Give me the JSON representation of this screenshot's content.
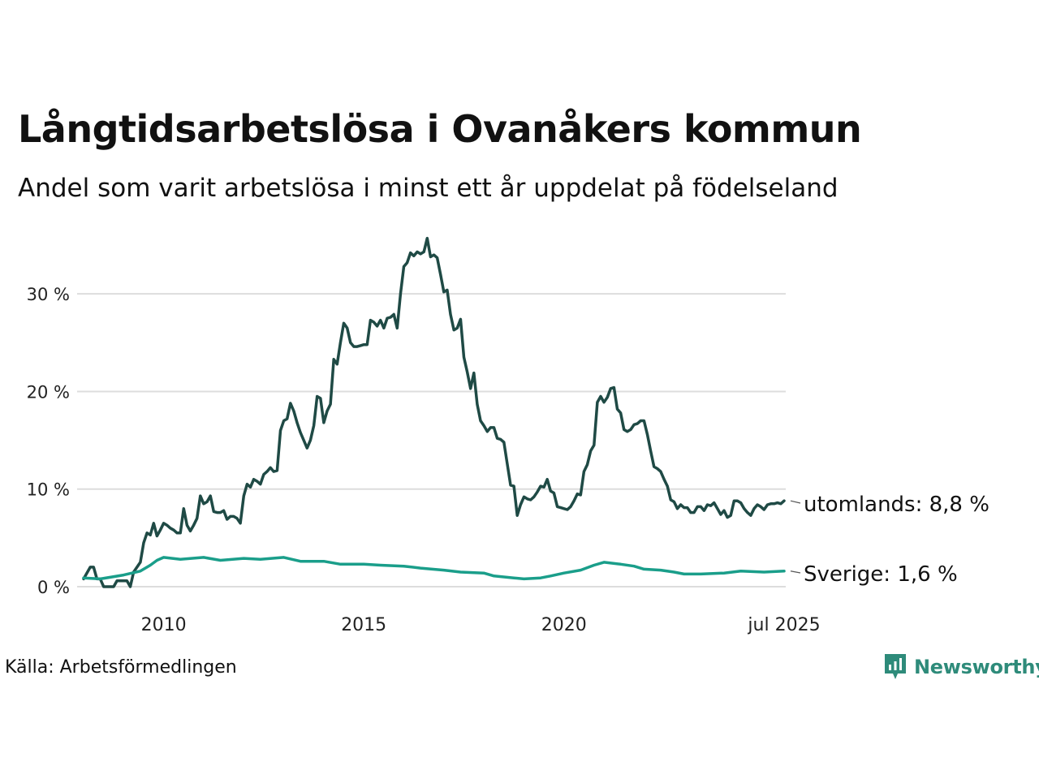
{
  "header": {
    "title": "Långtidsarbetslösa i Ovanåkers kommun",
    "subtitle": "Andel som varit arbetslösa i minst ett år uppdelat på födelseland"
  },
  "footer": {
    "source": "Källa: Arbetsförmedlingen",
    "brand": "Newsworthy"
  },
  "colors": {
    "utomlands": "#1f4a45",
    "sverige": "#1a9e8a",
    "grid": "#dddddd",
    "brand": "#2e8b7a"
  },
  "chart_data": {
    "type": "line",
    "x_start": "2008-01",
    "x_end": "2025-07",
    "x_ticks": [
      {
        "x": "2010-01",
        "label": "2010"
      },
      {
        "x": "2015-01",
        "label": "2015"
      },
      {
        "x": "2020-01",
        "label": "2020"
      },
      {
        "x": "2025-07",
        "label": "jul 2025"
      }
    ],
    "ylim": [
      0,
      36
    ],
    "y_ticks": [
      {
        "value": 0,
        "label": "0 %"
      },
      {
        "value": 10,
        "label": "10 %"
      },
      {
        "value": 20,
        "label": "20 %"
      },
      {
        "value": 30,
        "label": "30 %"
      }
    ],
    "grid": true,
    "series": [
      {
        "name": "utomlands",
        "end_label": "utomlands: 8,8 %",
        "color": "#1f4a45",
        "points": [
          [
            "2008-01",
            0.8
          ],
          [
            "2008-03",
            2.0
          ],
          [
            "2008-04",
            2.0
          ],
          [
            "2008-05",
            0.8
          ],
          [
            "2008-06",
            0.8
          ],
          [
            "2008-07",
            0
          ],
          [
            "2008-10",
            0
          ],
          [
            "2008-11",
            0.6
          ],
          [
            "2009-02",
            0.6
          ],
          [
            "2009-03",
            0
          ],
          [
            "2009-04",
            1.5
          ],
          [
            "2009-06",
            2.5
          ],
          [
            "2009-07",
            4.5
          ],
          [
            "2009-08",
            5.5
          ],
          [
            "2009-09",
            5.3
          ],
          [
            "2009-10",
            6.5
          ],
          [
            "2009-11",
            5.2
          ],
          [
            "2009-12",
            5.8
          ],
          [
            "2010-01",
            6.5
          ],
          [
            "2010-02",
            6.3
          ],
          [
            "2010-03",
            6.0
          ],
          [
            "2010-04",
            5.8
          ],
          [
            "2010-05",
            5.5
          ],
          [
            "2010-06",
            5.5
          ],
          [
            "2010-07",
            8.0
          ],
          [
            "2010-08",
            6.3
          ],
          [
            "2010-09",
            5.7
          ],
          [
            "2010-10",
            6.3
          ],
          [
            "2010-11",
            7.0
          ],
          [
            "2010-12",
            9.3
          ],
          [
            "2011-01",
            8.5
          ],
          [
            "2011-02",
            8.7
          ],
          [
            "2011-03",
            9.3
          ],
          [
            "2011-04",
            7.7
          ],
          [
            "2011-05",
            7.6
          ],
          [
            "2011-06",
            7.6
          ],
          [
            "2011-07",
            7.8
          ],
          [
            "2011-08",
            6.9
          ],
          [
            "2011-09",
            7.2
          ],
          [
            "2011-10",
            7.2
          ],
          [
            "2011-11",
            7.0
          ],
          [
            "2011-12",
            6.5
          ],
          [
            "2012-01",
            9.3
          ],
          [
            "2012-02",
            10.5
          ],
          [
            "2012-03",
            10.2
          ],
          [
            "2012-04",
            11.0
          ],
          [
            "2012-05",
            10.8
          ],
          [
            "2012-06",
            10.5
          ],
          [
            "2012-07",
            11.5
          ],
          [
            "2012-08",
            11.8
          ],
          [
            "2012-09",
            12.2
          ],
          [
            "2012-10",
            11.8
          ],
          [
            "2012-11",
            11.9
          ],
          [
            "2012-12",
            16.0
          ],
          [
            "2013-01",
            17.0
          ],
          [
            "2013-02",
            17.2
          ],
          [
            "2013-03",
            18.8
          ],
          [
            "2013-04",
            18.0
          ],
          [
            "2013-05",
            16.8
          ],
          [
            "2013-06",
            15.8
          ],
          [
            "2013-07",
            15.0
          ],
          [
            "2013-08",
            14.2
          ],
          [
            "2013-09",
            15.0
          ],
          [
            "2013-10",
            16.5
          ],
          [
            "2013-11",
            19.5
          ],
          [
            "2013-12",
            19.3
          ],
          [
            "2014-01",
            16.8
          ],
          [
            "2014-02",
            18.0
          ],
          [
            "2014-03",
            18.7
          ],
          [
            "2014-04",
            23.3
          ],
          [
            "2014-05",
            22.8
          ],
          [
            "2014-06",
            25.0
          ],
          [
            "2014-07",
            27.0
          ],
          [
            "2014-08",
            26.5
          ],
          [
            "2014-09",
            25.0
          ],
          [
            "2014-10",
            24.6
          ],
          [
            "2014-11",
            24.6
          ],
          [
            "2014-12",
            24.7
          ],
          [
            "2015-01",
            24.8
          ],
          [
            "2015-02",
            24.8
          ],
          [
            "2015-03",
            27.3
          ],
          [
            "2015-04",
            27.1
          ],
          [
            "2015-05",
            26.7
          ],
          [
            "2015-06",
            27.3
          ],
          [
            "2015-07",
            26.5
          ],
          [
            "2015-08",
            27.5
          ],
          [
            "2015-09",
            27.6
          ],
          [
            "2015-10",
            27.9
          ],
          [
            "2015-11",
            26.5
          ],
          [
            "2015-12",
            30.0
          ],
          [
            "2016-01",
            32.8
          ],
          [
            "2016-02",
            33.2
          ],
          [
            "2016-03",
            34.2
          ],
          [
            "2016-04",
            33.9
          ],
          [
            "2016-05",
            34.3
          ],
          [
            "2016-06",
            34.1
          ],
          [
            "2016-07",
            34.3
          ],
          [
            "2016-08",
            35.7
          ],
          [
            "2016-09",
            33.8
          ],
          [
            "2016-10",
            34.0
          ],
          [
            "2016-11",
            33.7
          ],
          [
            "2016-12",
            32.0
          ],
          [
            "2017-01",
            30.2
          ],
          [
            "2017-02",
            30.4
          ],
          [
            "2017-03",
            27.9
          ],
          [
            "2017-04",
            26.3
          ],
          [
            "2017-05",
            26.5
          ],
          [
            "2017-06",
            27.4
          ],
          [
            "2017-07",
            23.5
          ],
          [
            "2017-08",
            22.0
          ],
          [
            "2017-09",
            20.3
          ],
          [
            "2017-10",
            21.9
          ],
          [
            "2017-11",
            18.7
          ],
          [
            "2017-12",
            17.0
          ],
          [
            "2018-01",
            16.5
          ],
          [
            "2018-02",
            15.9
          ],
          [
            "2018-03",
            16.3
          ],
          [
            "2018-04",
            16.3
          ],
          [
            "2018-05",
            15.2
          ],
          [
            "2018-06",
            15.1
          ],
          [
            "2018-07",
            14.8
          ],
          [
            "2018-08",
            12.6
          ],
          [
            "2018-09",
            10.4
          ],
          [
            "2018-10",
            10.3
          ],
          [
            "2018-11",
            7.3
          ],
          [
            "2018-12",
            8.4
          ],
          [
            "2019-01",
            9.2
          ],
          [
            "2019-02",
            9.0
          ],
          [
            "2019-03",
            8.9
          ],
          [
            "2019-04",
            9.2
          ],
          [
            "2019-05",
            9.7
          ],
          [
            "2019-06",
            10.3
          ],
          [
            "2019-07",
            10.2
          ],
          [
            "2019-08",
            11.0
          ],
          [
            "2019-09",
            9.8
          ],
          [
            "2019-10",
            9.6
          ],
          [
            "2019-11",
            8.2
          ],
          [
            "2019-12",
            8.1
          ],
          [
            "2020-01",
            8.0
          ],
          [
            "2020-02",
            7.9
          ],
          [
            "2020-03",
            8.2
          ],
          [
            "2020-04",
            8.8
          ],
          [
            "2020-05",
            9.5
          ],
          [
            "2020-06",
            9.4
          ],
          [
            "2020-07",
            11.8
          ],
          [
            "2020-08",
            12.5
          ],
          [
            "2020-09",
            13.9
          ],
          [
            "2020-10",
            14.5
          ],
          [
            "2020-11",
            18.9
          ],
          [
            "2020-12",
            19.5
          ],
          [
            "2021-01",
            18.9
          ],
          [
            "2021-02",
            19.4
          ],
          [
            "2021-03",
            20.3
          ],
          [
            "2021-04",
            20.4
          ],
          [
            "2021-05",
            18.2
          ],
          [
            "2021-06",
            17.8
          ],
          [
            "2021-07",
            16.1
          ],
          [
            "2021-08",
            15.9
          ],
          [
            "2021-09",
            16.1
          ],
          [
            "2021-10",
            16.6
          ],
          [
            "2021-11",
            16.7
          ],
          [
            "2021-12",
            17.0
          ],
          [
            "2022-01",
            17.0
          ],
          [
            "2022-02",
            15.6
          ],
          [
            "2022-03",
            13.9
          ],
          [
            "2022-04",
            12.3
          ],
          [
            "2022-05",
            12.1
          ],
          [
            "2022-06",
            11.8
          ],
          [
            "2022-07",
            11.0
          ],
          [
            "2022-08",
            10.3
          ],
          [
            "2022-09",
            8.9
          ],
          [
            "2022-10",
            8.7
          ],
          [
            "2022-11",
            8.0
          ],
          [
            "2022-12",
            8.4
          ],
          [
            "2023-01",
            8.1
          ],
          [
            "2023-02",
            8.1
          ],
          [
            "2023-03",
            7.6
          ],
          [
            "2023-04",
            7.6
          ],
          [
            "2023-05",
            8.2
          ],
          [
            "2023-06",
            8.2
          ],
          [
            "2023-07",
            7.8
          ],
          [
            "2023-08",
            8.4
          ],
          [
            "2023-09",
            8.3
          ],
          [
            "2023-10",
            8.6
          ],
          [
            "2023-11",
            8.0
          ],
          [
            "2023-12",
            7.4
          ],
          [
            "2024-01",
            7.8
          ],
          [
            "2024-02",
            7.1
          ],
          [
            "2024-03",
            7.3
          ],
          [
            "2024-04",
            8.8
          ],
          [
            "2024-05",
            8.8
          ],
          [
            "2024-06",
            8.6
          ],
          [
            "2024-07",
            8.0
          ],
          [
            "2024-08",
            7.6
          ],
          [
            "2024-09",
            7.3
          ],
          [
            "2024-10",
            8.0
          ],
          [
            "2024-11",
            8.4
          ],
          [
            "2024-12",
            8.2
          ],
          [
            "2025-01",
            7.9
          ],
          [
            "2025-02",
            8.4
          ],
          [
            "2025-03",
            8.5
          ],
          [
            "2025-04",
            8.5
          ],
          [
            "2025-05",
            8.6
          ],
          [
            "2025-06",
            8.5
          ],
          [
            "2025-07",
            8.8
          ]
        ]
      },
      {
        "name": "Sverige",
        "end_label": "Sverige: 1,6 %",
        "color": "#1a9e8a",
        "points": [
          [
            "2008-01",
            0.9
          ],
          [
            "2008-06",
            0.8
          ],
          [
            "2009-01",
            1.2
          ],
          [
            "2009-06",
            1.6
          ],
          [
            "2009-09",
            2.2
          ],
          [
            "2009-11",
            2.7
          ],
          [
            "2010-01",
            3.0
          ],
          [
            "2010-06",
            2.8
          ],
          [
            "2011-01",
            3.0
          ],
          [
            "2011-06",
            2.7
          ],
          [
            "2012-01",
            2.9
          ],
          [
            "2012-06",
            2.8
          ],
          [
            "2013-01",
            3.0
          ],
          [
            "2013-06",
            2.6
          ],
          [
            "2014-01",
            2.6
          ],
          [
            "2014-06",
            2.3
          ],
          [
            "2015-01",
            2.3
          ],
          [
            "2015-06",
            2.2
          ],
          [
            "2016-01",
            2.1
          ],
          [
            "2016-06",
            1.9
          ],
          [
            "2017-01",
            1.7
          ],
          [
            "2017-06",
            1.5
          ],
          [
            "2018-01",
            1.4
          ],
          [
            "2018-04",
            1.1
          ],
          [
            "2018-10",
            0.9
          ],
          [
            "2019-01",
            0.8
          ],
          [
            "2019-06",
            0.9
          ],
          [
            "2019-09",
            1.1
          ],
          [
            "2020-01",
            1.4
          ],
          [
            "2020-06",
            1.7
          ],
          [
            "2020-10",
            2.2
          ],
          [
            "2021-01",
            2.5
          ],
          [
            "2021-06",
            2.3
          ],
          [
            "2021-10",
            2.1
          ],
          [
            "2022-01",
            1.8
          ],
          [
            "2022-06",
            1.7
          ],
          [
            "2022-10",
            1.5
          ],
          [
            "2023-01",
            1.3
          ],
          [
            "2023-06",
            1.3
          ],
          [
            "2024-01",
            1.4
          ],
          [
            "2024-06",
            1.6
          ],
          [
            "2025-01",
            1.5
          ],
          [
            "2025-07",
            1.6
          ]
        ]
      }
    ]
  }
}
